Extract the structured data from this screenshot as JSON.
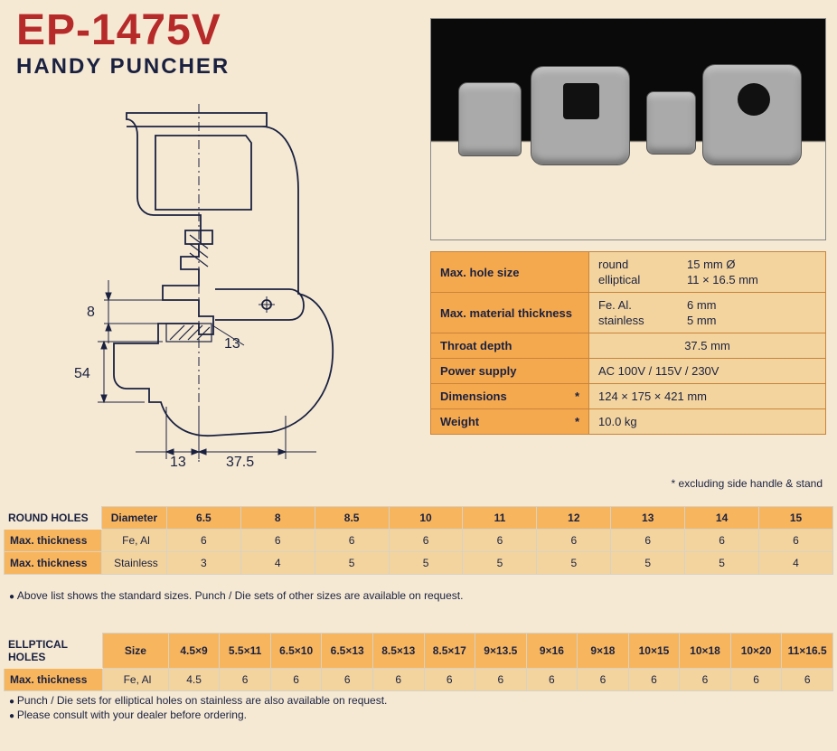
{
  "header": {
    "model": "EP-1475V",
    "subtitle": "HANDY PUNCHER"
  },
  "diagram": {
    "dimensions": {
      "gap": "8",
      "die_width": "13",
      "throat_height": "54",
      "punch_width": "13",
      "throat_depth": "37.5"
    },
    "stroke_color": "#1a2140",
    "stroke_width": 1.5
  },
  "specs": {
    "rows": [
      {
        "label": "Max. hole size",
        "two_col": true,
        "c1a": "round",
        "c2a": "15 mm Ø",
        "c1b": "elliptical",
        "c2b": "11 × 16.5 mm"
      },
      {
        "label": "Max. material thickness",
        "two_col": true,
        "c1a": "Fe. Al.",
        "c2a": "6 mm",
        "c1b": "stainless",
        "c2b": "5 mm"
      },
      {
        "label": "Throat depth",
        "value": "37.5 mm",
        "center": true
      },
      {
        "label": "Power supply",
        "value": "AC 100V / 115V / 230V"
      },
      {
        "label": "Dimensions",
        "asterisk": true,
        "value": "124 × 175 × 421 mm"
      },
      {
        "label": "Weight",
        "asterisk": true,
        "value": "10.0 kg"
      }
    ],
    "footnote": "* excluding side handle & stand"
  },
  "round_holes": {
    "title": "ROUND HOLES",
    "col_header_label": "Diameter",
    "columns": [
      "6.5",
      "8",
      "8.5",
      "10",
      "11",
      "12",
      "13",
      "14",
      "15"
    ],
    "rows": [
      {
        "head": "Max. thickness",
        "sub": "Fe, Al",
        "vals": [
          "6",
          "6",
          "6",
          "6",
          "6",
          "6",
          "6",
          "6",
          "6"
        ]
      },
      {
        "head": "Max. thickness",
        "sub": "Stainless",
        "vals": [
          "3",
          "4",
          "5",
          "5",
          "5",
          "5",
          "5",
          "5",
          "4"
        ]
      }
    ],
    "note": "Above list shows the standard sizes. Punch / Die sets of other sizes are available on request."
  },
  "elliptical_holes": {
    "title": "ELLPTICAL HOLES",
    "col_header_label": "Size",
    "columns": [
      "4.5×9",
      "5.5×11",
      "6.5×10",
      "6.5×13",
      "8.5×13",
      "8.5×17",
      "9×13.5",
      "9×16",
      "9×18",
      "10×15",
      "10×18",
      "10×20",
      "11×16.5"
    ],
    "rows": [
      {
        "head": "Max. thickness",
        "sub": "Fe, Al",
        "vals": [
          "4.5",
          "6",
          "6",
          "6",
          "6",
          "6",
          "6",
          "6",
          "6",
          "6",
          "6",
          "6",
          "6"
        ]
      }
    ],
    "note1": "Punch / Die sets for elliptical holes on stainless are also available on request.",
    "note2": "Please consult with your dealer before ordering."
  },
  "colors": {
    "page_bg": "#f5e9d4",
    "header_orange": "#f7b55e",
    "cell_orange": "#f3d49e",
    "label_orange": "#f5a94f",
    "title_red": "#b62a2a",
    "text_navy": "#1a2140",
    "border": "#c8843a"
  }
}
